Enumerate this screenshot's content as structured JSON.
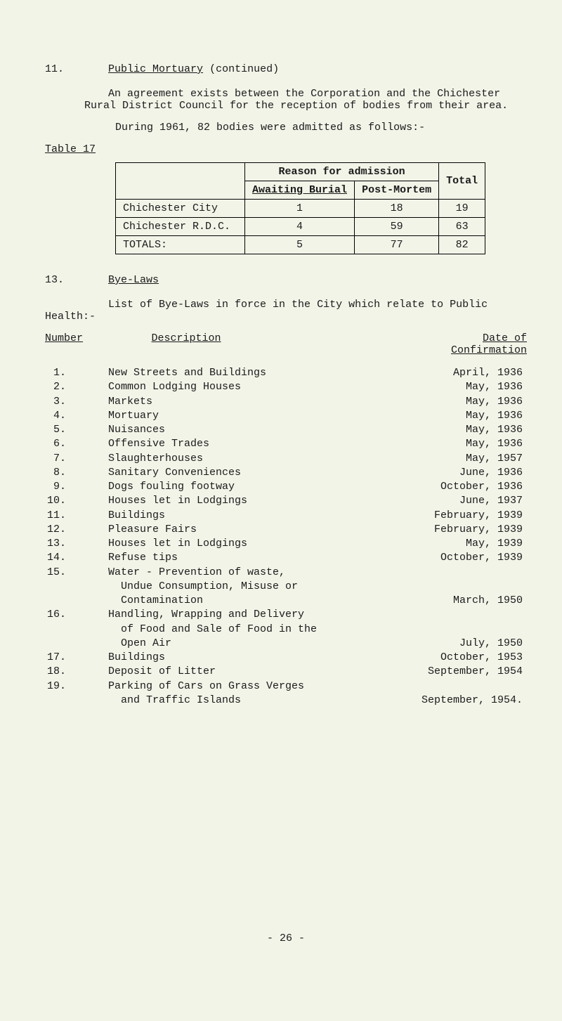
{
  "section11": {
    "num": "11.",
    "title": "Public Mortuary",
    "title_suffix": " (continued)",
    "para1": "An agreement exists between the Corporation and the Chichester Rural District Council for the reception of bodies from their area.",
    "para2": "During 1961, 82 bodies were admitted as follows:-",
    "table_label": "Table 17"
  },
  "table17": {
    "reason_header": "Reason for admission",
    "col_awaiting": "Awaiting Burial",
    "col_postmortem": "Post-Mortem",
    "col_total": "Total",
    "rows": [
      {
        "label": "Chichester City",
        "awaiting": "1",
        "pm": "18",
        "total": "19"
      },
      {
        "label": "Chichester R.D.C.",
        "awaiting": "4",
        "pm": "59",
        "total": "63"
      }
    ],
    "totals_label": "TOTALS:",
    "totals": {
      "awaiting": "5",
      "pm": "77",
      "total": "82"
    }
  },
  "section13": {
    "num": "13.",
    "title": "Bye-Laws",
    "intro_line1": "List of Bye-Laws in force in the City which relate to Public",
    "intro_line2": "Health:-",
    "col_number": "Number",
    "col_description": "Description",
    "col_date_l1": "Date of",
    "col_date_l2": "Confirmation",
    "items": [
      {
        "n": "1.",
        "d": "New Streets and Buildings",
        "date": "April, 1936"
      },
      {
        "n": "2.",
        "d": "Common Lodging Houses",
        "date": "May, 1936"
      },
      {
        "n": "3.",
        "d": "Markets",
        "date": "May, 1936"
      },
      {
        "n": "4.",
        "d": "Mortuary",
        "date": "May, 1936"
      },
      {
        "n": "5.",
        "d": "Nuisances",
        "date": "May, 1936"
      },
      {
        "n": "6.",
        "d": "Offensive Trades",
        "date": "May, 1936"
      },
      {
        "n": "7.",
        "d": "Slaughterhouses",
        "date": "May, 1957"
      },
      {
        "n": "8.",
        "d": "Sanitary Conveniences",
        "date": "June, 1936"
      },
      {
        "n": "9.",
        "d": "Dogs fouling footway",
        "date": "October, 1936"
      },
      {
        "n": "10.",
        "d": "Houses let in Lodgings",
        "date": "June, 1937"
      },
      {
        "n": "11.",
        "d": "Buildings",
        "date": "February, 1939"
      },
      {
        "n": "12.",
        "d": "Pleasure Fairs",
        "date": "February, 1939"
      },
      {
        "n": "13.",
        "d": "Houses let in Lodgings",
        "date": "May, 1939"
      },
      {
        "n": "14.",
        "d": "Refuse tips",
        "date": "October, 1939"
      },
      {
        "n": "15.",
        "d": "Water - Prevention of waste,",
        "date": ""
      },
      {
        "n": "",
        "d": "  Undue Consumption, Misuse or",
        "date": ""
      },
      {
        "n": "",
        "d": "  Contamination",
        "date": "March, 1950"
      },
      {
        "n": "16.",
        "d": "Handling, Wrapping and Delivery",
        "date": ""
      },
      {
        "n": "",
        "d": "  of Food and Sale of Food in the",
        "date": ""
      },
      {
        "n": "",
        "d": "  Open Air",
        "date": "July, 1950"
      },
      {
        "n": "17.",
        "d": "Buildings",
        "date": "October, 1953"
      },
      {
        "n": "18.",
        "d": "Deposit of Litter",
        "date": "September, 1954"
      },
      {
        "n": "19.",
        "d": "Parking of Cars on Grass Verges",
        "date": ""
      },
      {
        "n": "",
        "d": "  and Traffic Islands",
        "date": "September, 1954."
      }
    ]
  },
  "page_number": "- 26 -",
  "style": {
    "background_color": "#f2f4e8",
    "text_color": "#1a1a1a",
    "font_family": "Courier New",
    "font_size_pt": 11,
    "table_border_color": "#000000"
  }
}
